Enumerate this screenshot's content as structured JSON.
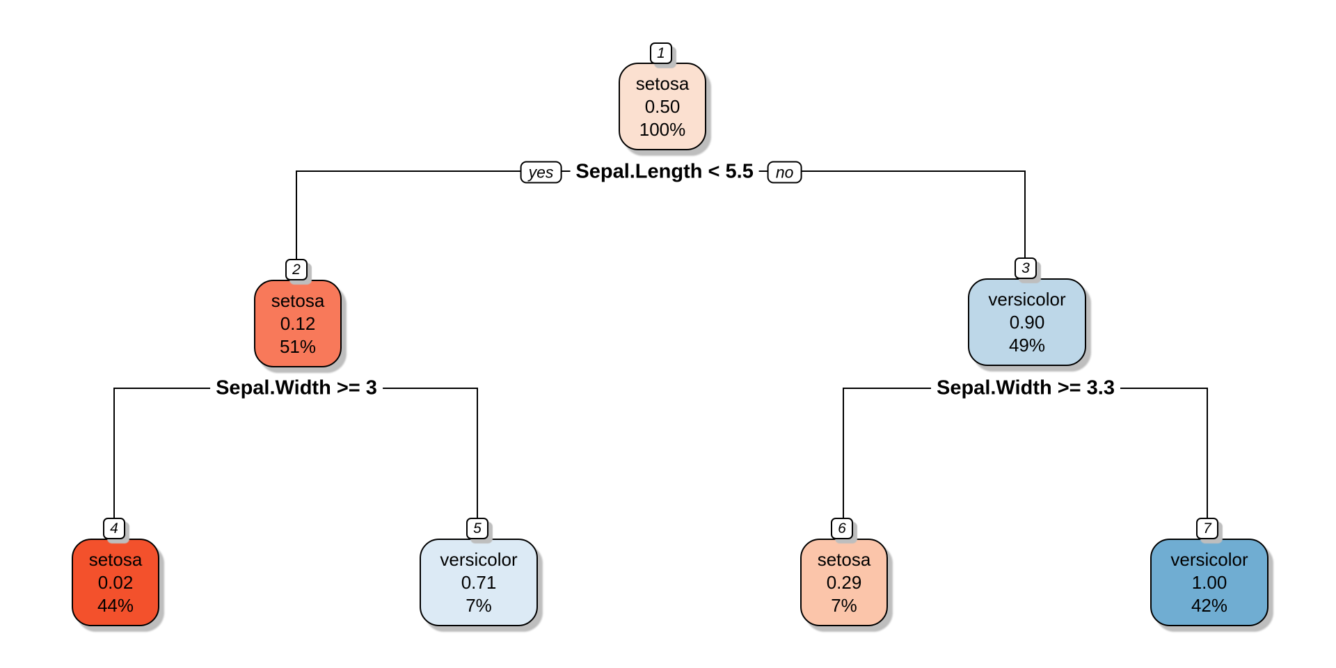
{
  "figure": {
    "kind": "decision-tree-plot",
    "background": "#ffffff",
    "edge_color": "#000000",
    "shadow_color": "#bebebe",
    "box_border_color": "#000000"
  },
  "splits": [
    {
      "condition": "Sepal.Length < 5.5",
      "yes_label": "yes",
      "no_label": "no",
      "at_node": "1",
      "left_child": "2",
      "right_child": "3"
    },
    {
      "condition": "Sepal.Width >= 3",
      "at_node": "2",
      "left_child": "4",
      "right_child": "5"
    },
    {
      "condition": "Sepal.Width >= 3.3",
      "at_node": "3",
      "left_child": "6",
      "right_child": "7"
    }
  ],
  "nodes": [
    {
      "id": "1",
      "label": "setosa",
      "prob": "0.50",
      "pct": "100%",
      "fill": "#fbe0d0"
    },
    {
      "id": "2",
      "label": "setosa",
      "prob": "0.12",
      "pct": "51%",
      "fill": "#f8795a"
    },
    {
      "id": "3",
      "label": "versicolor",
      "prob": "0.90",
      "pct": "49%",
      "fill": "#bdd7e8"
    },
    {
      "id": "4",
      "label": "setosa",
      "prob": "0.02",
      "pct": "44%",
      "fill": "#f3512c"
    },
    {
      "id": "5",
      "label": "versicolor",
      "prob": "0.71",
      "pct": "7%",
      "fill": "#dceaf5"
    },
    {
      "id": "6",
      "label": "setosa",
      "prob": "0.29",
      "pct": "7%",
      "fill": "#fbc5aa"
    },
    {
      "id": "7",
      "label": "versicolor",
      "prob": "1.00",
      "pct": "42%",
      "fill": "#70add2"
    }
  ]
}
